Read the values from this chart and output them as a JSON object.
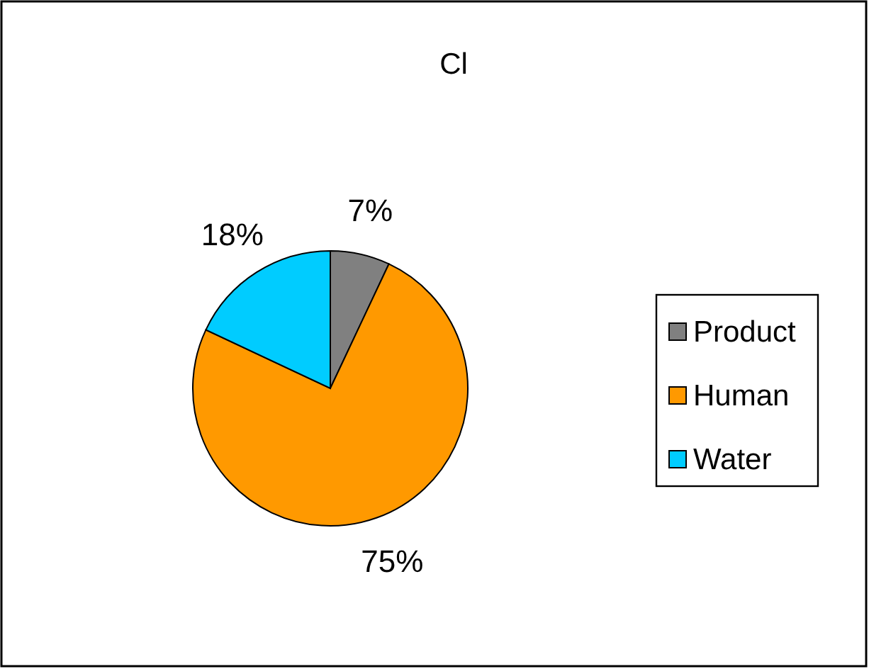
{
  "chart_data": {
    "type": "pie",
    "title": "Cl",
    "categories": [
      "Product",
      "Human",
      "Water"
    ],
    "values": [
      7,
      75,
      18
    ],
    "colors": [
      "#808080",
      "#ff9900",
      "#00ccff"
    ],
    "value_labels": [
      "7%",
      "75%",
      "18%"
    ],
    "legend": "right"
  }
}
